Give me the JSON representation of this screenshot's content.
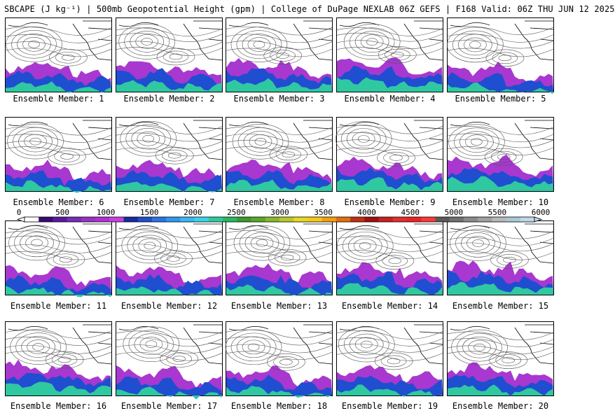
{
  "title": "SBCAPE (J kg⁻¹) | 500mb Geopotential Height (gpm) | College of DuPage NEXLAB 06Z GEFS | F168 Valid: 06Z THU JUN 12 2025",
  "label_prefix": "Ensemble Member: ",
  "members": [
    1,
    2,
    3,
    4,
    5,
    6,
    7,
    8,
    9,
    10,
    11,
    12,
    13,
    14,
    15,
    16,
    17,
    18,
    19,
    20
  ],
  "colorbar": {
    "ticks": [
      "0",
      "500",
      "1000",
      "1500",
      "2000",
      "2500",
      "3000",
      "3500",
      "4000",
      "4500",
      "5000",
      "5500",
      "6000"
    ],
    "colors": [
      "#ffffff",
      "#3a0a6e",
      "#5a1a9e",
      "#7a2ab8",
      "#9a30c8",
      "#b030d8",
      "#c840e0",
      "#1a2aa0",
      "#1f4ed0",
      "#2a74e6",
      "#2f98f0",
      "#3ab8f4",
      "#38d4e8",
      "#30c8a0",
      "#28b860",
      "#3a9a2a",
      "#5aa828",
      "#8ab82a",
      "#b8c828",
      "#e6d820",
      "#f6c818",
      "#f0a010",
      "#e07010",
      "#c03010",
      "#a01010",
      "#c82020",
      "#e03030",
      "#f02020",
      "#ff3838",
      "#5a5a5a",
      "#707070",
      "#8a8a8a",
      "#a0a0a0",
      "#b8b8b8",
      "#a8c8d8",
      "#c0d8e8"
    ]
  }
}
